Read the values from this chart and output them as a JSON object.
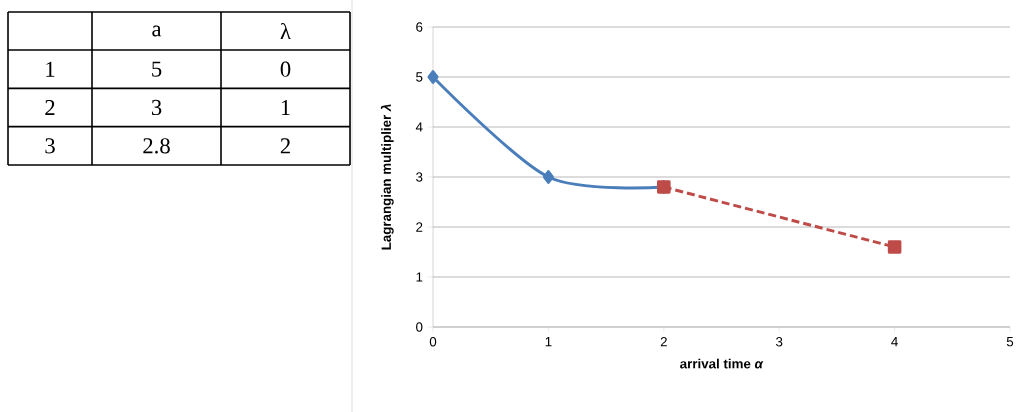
{
  "chart_data": [
    {
      "type": "heatmap",
      "categories": [
        "a",
        "λ"
      ],
      "y_categories": [
        "1",
        "2",
        "3"
      ],
      "cells": [
        [
          5,
          0
        ],
        [
          3,
          1
        ],
        [
          2.8,
          2
        ]
      ],
      "data_labels": true
    },
    {
      "type": "line",
      "xlabel": "arrival time *α*",
      "ylabel": "Lagrangian multiplier *λ*",
      "xlim": [
        0,
        5
      ],
      "ylim": [
        0,
        6
      ],
      "xticks": [
        0,
        1,
        2,
        3,
        4,
        5
      ],
      "yticks": [
        0,
        1,
        2,
        3,
        4,
        5,
        6
      ],
      "grid": "y",
      "series": [
        {
          "color": "#4a7ebb",
          "x": [
            0,
            1,
            2
          ],
          "values": [
            5,
            3,
            2.8
          ],
          "marker": "diamond",
          "line_style": "solid"
        },
        {
          "color": "#be4b48",
          "x": [
            2,
            4
          ],
          "values": [
            2.8,
            1.6
          ],
          "marker": "square",
          "line_style": "dashed"
        }
      ]
    }
  ]
}
